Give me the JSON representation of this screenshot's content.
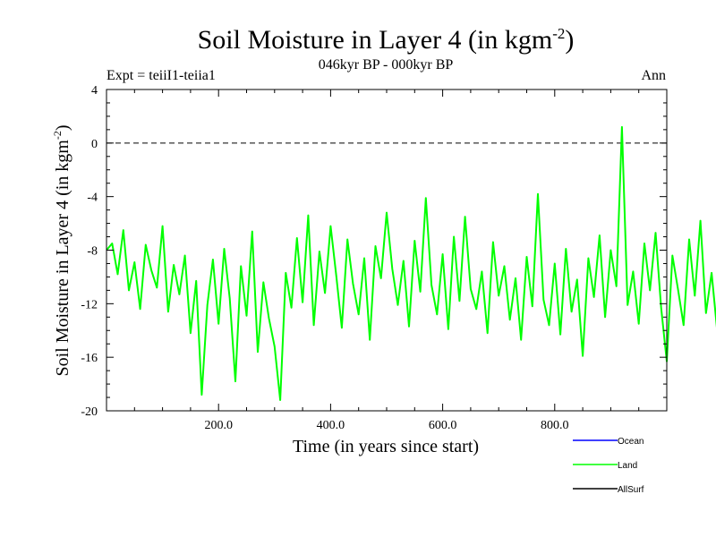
{
  "chart_data": {
    "type": "line",
    "title_main": "Soil Moisture in Layer 4 (in kgm",
    "title_sup": "-2",
    "title_close": ")",
    "subtitle": "046kyr BP - 000kyr BP",
    "expt": "Expt = teiiI1-teiia1",
    "season": "Ann",
    "xlabel": "Time (in years since start)",
    "ylabel_main": "Soil Moisture in Layer 4 (in kgm",
    "ylabel_sup": "-2",
    "ylabel_close": ")",
    "xlim": [
      0,
      1000
    ],
    "ylim": [
      -20,
      4
    ],
    "xticks": [
      200,
      400,
      600,
      800
    ],
    "xtick_labels": [
      "200.0",
      "400.0",
      "600.0",
      "800.0"
    ],
    "yticks": [
      4,
      0,
      -4,
      -8,
      -12,
      -16,
      -20
    ],
    "ytick_labels": [
      "4",
      "0",
      "-4",
      "-8",
      "-12",
      "-16",
      "-20"
    ],
    "reference_line": 0,
    "grid": false,
    "legend_position": "bottom-right",
    "colors": {
      "Ocean": "#0000ff",
      "Land": "#00ff00",
      "AllSurf": "#000000"
    },
    "series": [
      {
        "name": "Ocean",
        "values": []
      },
      {
        "name": "AllSurf",
        "values": []
      },
      {
        "name": "Land",
        "x_start": 0,
        "x_step": 10,
        "values": [
          -8.0,
          -7.5,
          -9.8,
          -6.5,
          -11.0,
          -8.9,
          -12.4,
          -7.6,
          -9.5,
          -10.8,
          -6.2,
          -12.6,
          -9.1,
          -11.3,
          -8.4,
          -14.2,
          -10.3,
          -18.8,
          -12.1,
          -8.7,
          -13.5,
          -7.9,
          -11.6,
          -17.8,
          -9.2,
          -12.9,
          -6.6,
          -15.6,
          -10.4,
          -13.1,
          -15.2,
          -19.2,
          -9.7,
          -12.3,
          -7.1,
          -11.9,
          -5.4,
          -13.6,
          -8.1,
          -11.2,
          -6.2,
          -9.9,
          -13.8,
          -7.2,
          -10.5,
          -12.8,
          -8.6,
          -14.7,
          -7.7,
          -10.1,
          -5.2,
          -9.4,
          -12.1,
          -8.8,
          -13.7,
          -7.3,
          -11.1,
          -4.1,
          -10.6,
          -12.8,
          -8.3,
          -13.9,
          -7.0,
          -11.8,
          -5.5,
          -10.9,
          -12.4,
          -9.6,
          -14.2,
          -7.4,
          -11.4,
          -9.2,
          -13.2,
          -10.1,
          -14.7,
          -8.5,
          -12.2,
          -3.8,
          -11.7,
          -13.6,
          -9.0,
          -14.3,
          -7.9,
          -12.6,
          -10.2,
          -15.9,
          -8.6,
          -11.5,
          -6.9,
          -13.0,
          -8.0,
          -10.7,
          1.2,
          -12.1,
          -9.6,
          -13.5,
          -7.5,
          -11.0,
          -6.7,
          -12.3,
          -16.3,
          -8.4,
          -10.9,
          -13.6,
          -7.2,
          -11.4,
          -5.8,
          -12.7,
          -9.7,
          -14.0,
          -7.4,
          -10.8,
          -13.1,
          -6.5,
          -11.6,
          -8.3,
          -14.2,
          -9.1,
          -12.5,
          -7.0,
          -10.6,
          -13.3,
          -8.7,
          -16.4,
          -9.8,
          -12.2,
          -7.1,
          -11.3,
          -5.6,
          -12.9,
          -8.9,
          -14.4,
          -10.3,
          -13.0,
          -7.7,
          -11.4,
          -6.9,
          -12.5,
          -9.4,
          -13.8,
          -8.1,
          -11.0,
          -13.9,
          -7.6,
          -16.9,
          -9.9,
          -12.3,
          -7.3,
          -11.7,
          -5.7,
          -12.8,
          -9.1,
          -14.1,
          -8.2,
          -11.5,
          -13.4,
          -7.2,
          -10.9,
          -6.1,
          -12.4,
          -8.8,
          -13.2,
          -7.0,
          -11.2,
          -5.3,
          -12.6,
          -9.5,
          -14.5,
          -8.4,
          -11.6,
          -4.8,
          -12.0,
          -9.3,
          -13.7,
          -7.4,
          -10.8,
          -15.5,
          -8.7,
          -17.1,
          -10.1,
          -12.7,
          -7.9,
          -11.4,
          -6.2,
          -12.9,
          -9.2,
          -14.1,
          -8.0,
          -11.8,
          -13.3,
          -7.6,
          -11.1,
          -6.4,
          -12.5,
          -9.0,
          -13.7,
          -7.8,
          -11.3,
          -6.0,
          -10.6,
          -8.3,
          -9.4,
          -11.9,
          -2.1
        ]
      }
    ]
  },
  "legend": {
    "items": [
      {
        "label": "Ocean",
        "color": "#0000ff"
      },
      {
        "label": "Land",
        "color": "#00ff00"
      },
      {
        "label": "AllSurf",
        "color": "#000000"
      }
    ]
  }
}
